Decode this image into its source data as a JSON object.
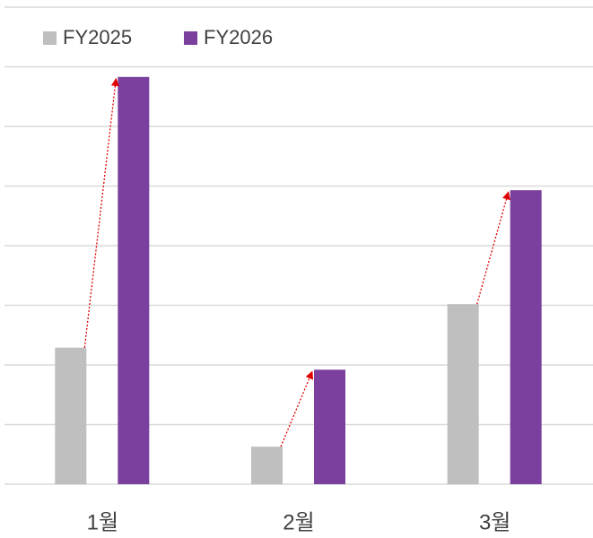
{
  "chart_data": {
    "type": "bar",
    "categories": [
      "1월",
      "2월",
      "3월"
    ],
    "series": [
      {
        "name": "FY2025",
        "color": "#bfbfbf",
        "values": [
          2.29,
          0.63,
          3.02
        ]
      },
      {
        "name": "FY2026",
        "color": "#7b3f9e",
        "values": [
          6.83,
          1.92,
          4.93
        ]
      }
    ],
    "ylim": [
      0,
      8
    ],
    "yticks": [
      0,
      1,
      2,
      3,
      4,
      5,
      6,
      7,
      8
    ],
    "grid": true,
    "legend": "top-left",
    "growth_arrow_color": "#e00000"
  }
}
